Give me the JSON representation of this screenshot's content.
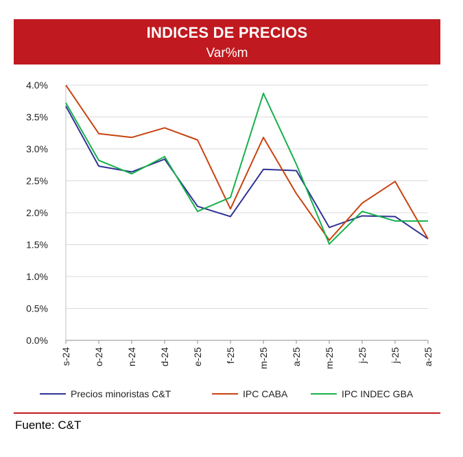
{
  "header": {
    "title": "INDICES DE PRECIOS",
    "subtitle": "Var%m"
  },
  "source": "Fuente: C&T",
  "chart_data": {
    "type": "line",
    "title": "INDICES DE PRECIOS",
    "subtitle": "Var%m",
    "categories": [
      "s-24",
      "o-24",
      "n-24",
      "d-24",
      "e-25",
      "f-25",
      "m-25",
      "a-25",
      "m-25",
      "j-25",
      "j-25",
      "a-25"
    ],
    "ylim": [
      0,
      4.0
    ],
    "yticks": [
      "0.0%",
      "0.5%",
      "1.0%",
      "1.5%",
      "2.0%",
      "2.5%",
      "3.0%",
      "3.5%",
      "4.0%"
    ],
    "grid": true,
    "legend_position": "bottom",
    "series": [
      {
        "name": "Precios minoristas C&T",
        "color": "#2e3192",
        "values": [
          3.67,
          2.73,
          2.64,
          2.84,
          2.1,
          1.94,
          2.68,
          2.66,
          1.77,
          1.95,
          1.94,
          1.59
        ]
      },
      {
        "name": "IPC CABA",
        "color": "#c8410e",
        "values": [
          4.0,
          3.24,
          3.18,
          3.33,
          3.14,
          2.06,
          3.18,
          2.3,
          1.57,
          2.15,
          2.49,
          1.59
        ]
      },
      {
        "name": "IPC INDEC GBA",
        "color": "#15b04a",
        "values": [
          3.72,
          2.82,
          2.61,
          2.88,
          2.02,
          2.24,
          3.87,
          2.76,
          1.51,
          2.02,
          1.87,
          1.87
        ]
      }
    ]
  }
}
